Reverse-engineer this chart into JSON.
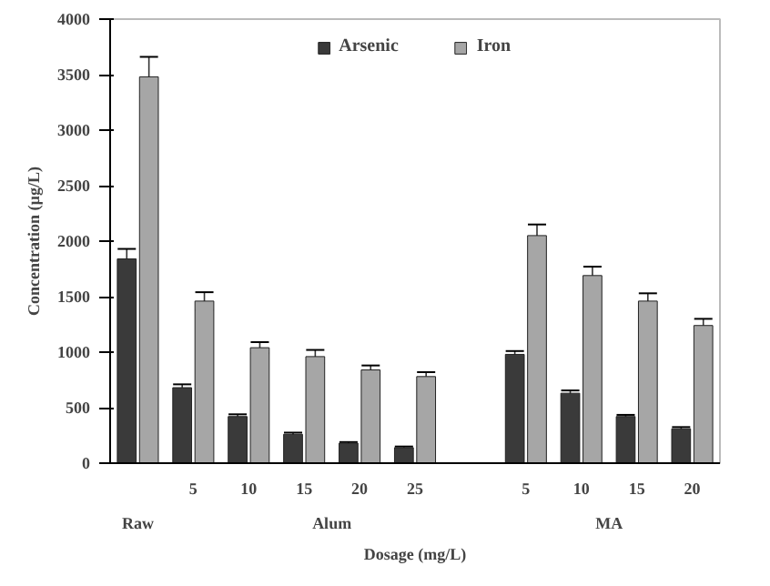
{
  "chart_data": {
    "type": "bar",
    "xlabel": "Dosage (mg/L)",
    "ylabel": "Concentration (µg/L)",
    "categories": [
      null,
      "5",
      "10",
      "15",
      "20",
      "25",
      null,
      "5",
      "10",
      "15",
      "20"
    ],
    "series": [
      {
        "name": "Arsenic",
        "color": "#3a3a3a",
        "values": [
          1840,
          680,
          420,
          260,
          180,
          140,
          null,
          980,
          630,
          420,
          310
        ],
        "errors": [
          90,
          30,
          20,
          15,
          10,
          10,
          null,
          30,
          25,
          15,
          15
        ]
      },
      {
        "name": "Iron",
        "color": "#a6a6a6",
        "values": [
          3480,
          1460,
          1040,
          960,
          840,
          780,
          null,
          2050,
          1690,
          1460,
          1240
        ],
        "errors": [
          180,
          80,
          50,
          60,
          40,
          40,
          null,
          100,
          80,
          70,
          60
        ]
      }
    ],
    "annotations": [
      "Raw",
      "Alum",
      "MA"
    ],
    "ylim": [
      0,
      4000
    ],
    "yticks": [
      0,
      500,
      1000,
      1500,
      2000,
      2500,
      3000,
      3500,
      4000
    ],
    "legend": "top",
    "grid": false
  }
}
